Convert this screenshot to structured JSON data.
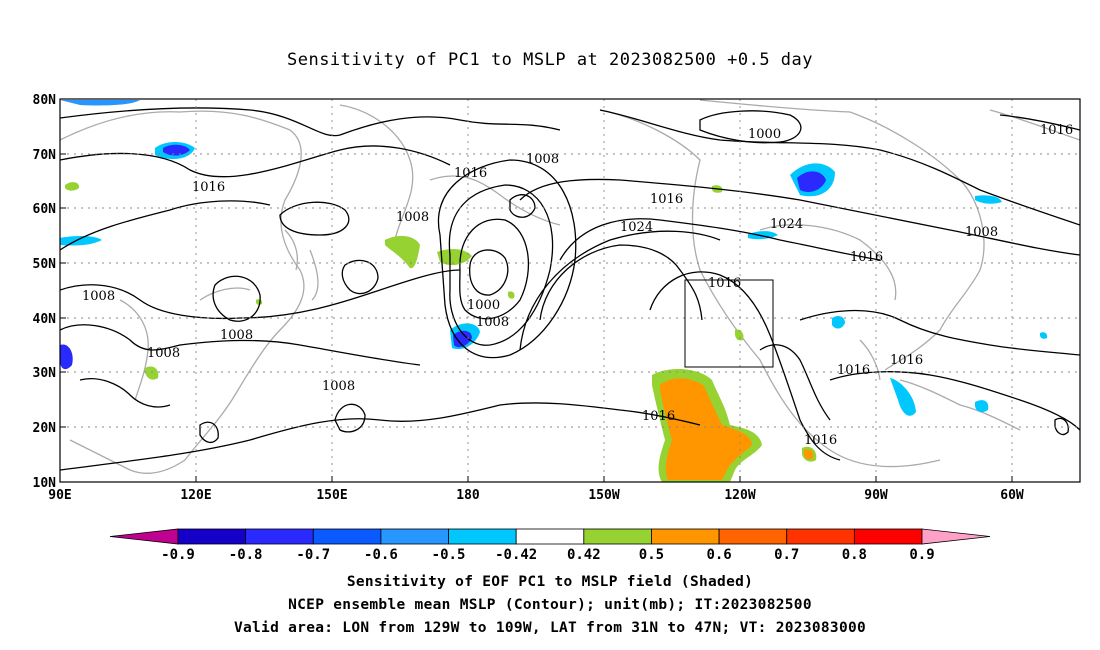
{
  "title": "Sensitivity of PC1 to MSLP at 2023082500 +0.5 day",
  "map": {
    "lat_labels": [
      "80N",
      "70N",
      "60N",
      "50N",
      "40N",
      "30N",
      "20N",
      "10N"
    ],
    "lon_labels": [
      "90E",
      "120E",
      "150E",
      "180",
      "150W",
      "120W",
      "90W",
      "60W"
    ],
    "lat_range": [
      10,
      80
    ],
    "lon_range": [
      90,
      315
    ],
    "grid": true,
    "valid_box": {
      "lon": [
        -129,
        -109
      ],
      "lat": [
        31,
        47
      ]
    },
    "contour_labels": [
      {
        "text": "1000"
      },
      {
        "text": "1016"
      },
      {
        "text": "1008"
      },
      {
        "text": "1016"
      },
      {
        "text": "1016"
      },
      {
        "text": "1008"
      },
      {
        "text": "1016"
      },
      {
        "text": "1024"
      },
      {
        "text": "1024"
      },
      {
        "text": "1016"
      },
      {
        "text": "1008"
      },
      {
        "text": "1016"
      },
      {
        "text": "1008"
      },
      {
        "text": "1000"
      },
      {
        "text": "1008"
      },
      {
        "text": "1016"
      },
      {
        "text": "1008"
      },
      {
        "text": "1008"
      },
      {
        "text": "1008"
      },
      {
        "text": "1016"
      },
      {
        "text": "1016"
      },
      {
        "text": "1016"
      },
      {
        "text": "1016"
      }
    ]
  },
  "colorbar": {
    "labels": [
      "-0.9",
      "-0.8",
      "-0.7",
      "-0.6",
      "-0.5",
      "-0.42",
      "0.42",
      "0.5",
      "0.6",
      "0.7",
      "0.8",
      "0.9"
    ],
    "colors": [
      "#c00090",
      "#1400c8",
      "#2a2aff",
      "#0a5aff",
      "#2896ff",
      "#00c8ff",
      "#ffffff",
      "#96d232",
      "#ff9600",
      "#ff6400",
      "#ff3200",
      "#ff0000",
      "#ffa0c8"
    ]
  },
  "captions": {
    "line1": "Sensitivity of EOF PC1 to MSLP field (Shaded)",
    "line2": "NCEP ensemble mean MSLP (Contour); unit(mb); IT:2023082500",
    "line3": "Valid area: LON from 129W to 109W, LAT from 31N to 47N; VT: 2023083000"
  }
}
